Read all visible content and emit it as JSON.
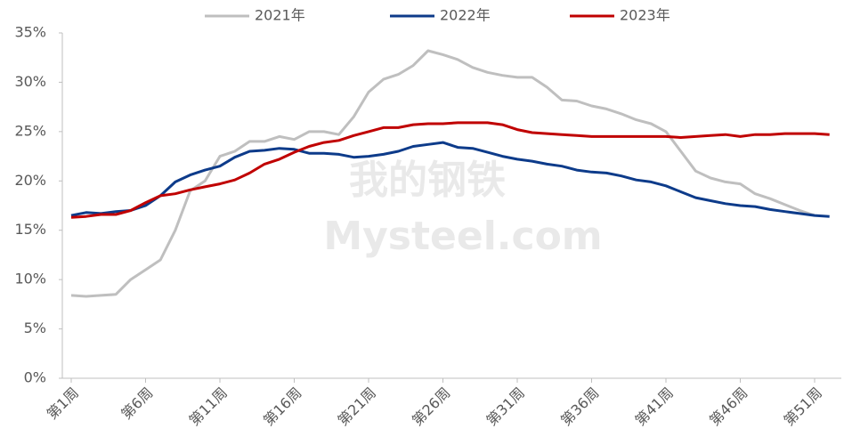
{
  "chart_data": {
    "type": "line",
    "categories": [
      "第1周",
      null,
      null,
      null,
      null,
      "第6周",
      null,
      null,
      null,
      null,
      "第11周",
      null,
      null,
      null,
      null,
      "第16周",
      null,
      null,
      null,
      null,
      "第21周",
      null,
      null,
      null,
      null,
      "第26周",
      null,
      null,
      null,
      null,
      "第31周",
      null,
      null,
      null,
      null,
      "第36周",
      null,
      null,
      null,
      null,
      "第41周",
      null,
      null,
      null,
      null,
      "第46周",
      null,
      null,
      null,
      null,
      "第51周",
      null
    ],
    "series": [
      {
        "name": "2021年",
        "color": "#bfbfbf",
        "values": [
          8.4,
          8.3,
          8.4,
          8.5,
          10.0,
          11.0,
          12.0,
          15.0,
          19.0,
          20.0,
          22.5,
          23.0,
          24.0,
          24.0,
          24.5,
          24.2,
          25.0,
          25.0,
          24.7,
          26.5,
          29.0,
          30.3,
          30.8,
          31.7,
          33.2,
          32.8,
          32.3,
          31.5,
          31.0,
          30.7,
          30.5,
          30.5,
          29.5,
          28.2,
          28.1,
          27.6,
          27.3,
          26.8,
          26.2,
          25.8,
          25.0,
          23.0,
          21.0,
          20.3,
          19.9,
          19.7,
          18.7,
          18.2,
          17.6,
          17.0,
          16.5,
          null
        ]
      },
      {
        "name": "2022年",
        "color": "#0d3b8a",
        "values": [
          16.5,
          16.8,
          16.7,
          16.9,
          17.0,
          17.5,
          18.5,
          19.9,
          20.6,
          21.1,
          21.5,
          22.4,
          23.0,
          23.1,
          23.3,
          23.2,
          22.8,
          22.8,
          22.7,
          22.4,
          22.5,
          22.7,
          23.0,
          23.5,
          23.7,
          23.9,
          23.4,
          23.3,
          22.9,
          22.5,
          22.2,
          22.0,
          21.7,
          21.5,
          21.1,
          20.9,
          20.8,
          20.5,
          20.1,
          19.9,
          19.5,
          18.9,
          18.3,
          18.0,
          17.7,
          17.5,
          17.4,
          17.1,
          16.9,
          16.7,
          16.5,
          16.4
        ]
      },
      {
        "name": "2023年",
        "color": "#c00000",
        "values": [
          16.3,
          16.4,
          16.6,
          16.6,
          17.0,
          17.8,
          18.5,
          18.7,
          19.1,
          19.4,
          19.7,
          20.1,
          20.8,
          21.7,
          22.2,
          22.9,
          23.5,
          23.9,
          24.1,
          24.6,
          25.0,
          25.4,
          25.4,
          25.7,
          25.8,
          25.8,
          25.9,
          25.9,
          25.9,
          25.7,
          25.2,
          24.9,
          24.8,
          24.7,
          24.6,
          24.5,
          24.5,
          24.5,
          24.5,
          24.5,
          24.5,
          24.4,
          24.5,
          24.6,
          24.7,
          24.5,
          24.7,
          24.7,
          24.8,
          24.8,
          24.8,
          24.7
        ]
      }
    ],
    "ylim": [
      0,
      35
    ],
    "yticks": [
      {
        "value": 0,
        "label": "0%"
      },
      {
        "value": 5,
        "label": "5%"
      },
      {
        "value": 10,
        "label": "10%"
      },
      {
        "value": 15,
        "label": "15%"
      },
      {
        "value": 20,
        "label": "20%"
      },
      {
        "value": 25,
        "label": "25%"
      },
      {
        "value": 30,
        "label": "30%"
      },
      {
        "value": 35,
        "label": "35%"
      }
    ],
    "legend": "top",
    "watermark": [
      "我的钢铁",
      "Mysteel.com"
    ]
  }
}
